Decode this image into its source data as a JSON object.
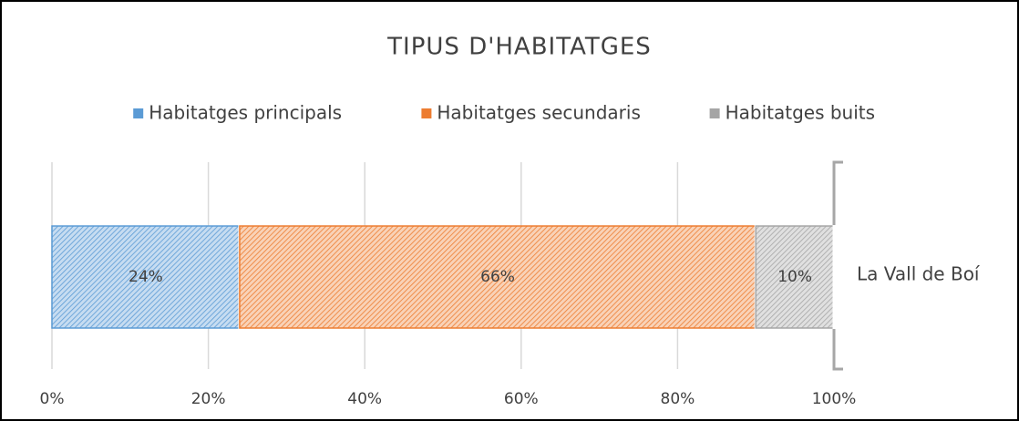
{
  "chart_data": {
    "type": "stacked-bar-horizontal",
    "title": "TIPUS D'HABITATGES",
    "categories": [
      "La Vall de Boí"
    ],
    "series": [
      {
        "name": "Habitatges principals",
        "color": "#5b9bd5",
        "values": [
          24
        ],
        "value_labels": [
          "24%"
        ]
      },
      {
        "name": "Habitatges secundaris",
        "color": "#ed7d31",
        "values": [
          66
        ],
        "value_labels": [
          "66%"
        ]
      },
      {
        "name": "Habitatges buits",
        "color": "#a5a5a5",
        "values": [
          10
        ],
        "value_labels": [
          "10%"
        ]
      }
    ],
    "xlim": [
      0,
      100
    ],
    "xticks": [
      {
        "value": 0,
        "label": "0%"
      },
      {
        "value": 20,
        "label": "20%"
      },
      {
        "value": 40,
        "label": "40%"
      },
      {
        "value": 60,
        "label": "60%"
      },
      {
        "value": 80,
        "label": "80%"
      },
      {
        "value": 100,
        "label": "100%"
      }
    ],
    "grid": true,
    "legend": "top"
  }
}
